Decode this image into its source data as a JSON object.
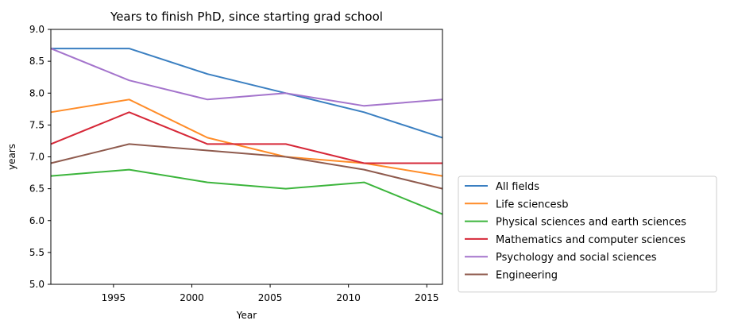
{
  "chart_data": {
    "type": "line",
    "title": "Years to finish PhD, since starting grad school",
    "xlabel": "Year",
    "ylabel": "years",
    "xlim": [
      1991,
      2016
    ],
    "ylim": [
      5.0,
      9.0
    ],
    "xticks": [
      1995,
      2000,
      2005,
      2010,
      2015
    ],
    "yticks": [
      5.0,
      5.5,
      6.0,
      6.5,
      7.0,
      7.5,
      8.0,
      8.5,
      9.0
    ],
    "x": [
      1991,
      1996,
      2001,
      2006,
      2011,
      2016
    ],
    "grid": false,
    "legend_position": "outside-lower-right",
    "series": [
      {
        "name": "All fields",
        "color": "#3a7fc1",
        "values": [
          8.7,
          8.7,
          8.3,
          8.0,
          7.7,
          7.3
        ]
      },
      {
        "name": "Life sciencesb",
        "color": "#ff8c28",
        "values": [
          7.7,
          7.9,
          7.3,
          7.0,
          6.9,
          6.7
        ]
      },
      {
        "name": "Physical sciences and earth sciences",
        "color": "#3cb53c",
        "values": [
          6.7,
          6.8,
          6.6,
          6.5,
          6.6,
          6.1
        ]
      },
      {
        "name": "Mathematics and computer sciences",
        "color": "#d62838",
        "values": [
          7.2,
          7.7,
          7.2,
          7.2,
          6.9,
          6.9
        ]
      },
      {
        "name": "Psychology and social sciences",
        "color": "#a474cc",
        "values": [
          8.7,
          8.2,
          7.9,
          8.0,
          7.8,
          7.9
        ]
      },
      {
        "name": "Engineering",
        "color": "#8f5b4e",
        "values": [
          6.9,
          7.2,
          7.1,
          7.0,
          6.8,
          6.5
        ]
      }
    ]
  }
}
